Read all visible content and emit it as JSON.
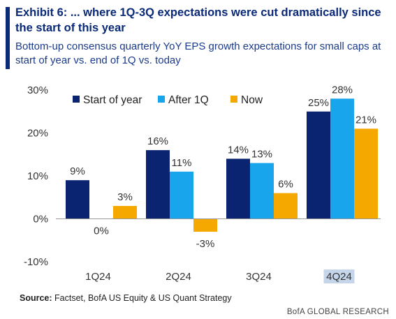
{
  "header": {
    "title": "Exhibit 6: ... where 1Q-3Q expectations were cut dramatically since the start of this year",
    "subtitle": "Bottom-up consensus quarterly YoY EPS growth expectations for small caps at start of year vs. end of 1Q vs. today"
  },
  "chart_data": {
    "type": "bar",
    "categories": [
      "1Q24",
      "2Q24",
      "3Q24",
      "4Q24"
    ],
    "series": [
      {
        "name": "Start of year",
        "values": [
          9,
          16,
          14,
          25
        ],
        "labels": [
          "9%",
          "16%",
          "14%",
          "25%"
        ],
        "color": "#0a2472"
      },
      {
        "name": "After 1Q",
        "values": [
          0,
          11,
          13,
          28
        ],
        "labels": [
          "0%",
          "11%",
          "13%",
          "28%"
        ],
        "color": "#19a5eb"
      },
      {
        "name": "Now",
        "values": [
          3,
          -3,
          6,
          21
        ],
        "labels": [
          "3%",
          "-3%",
          "6%",
          "21%"
        ],
        "color": "#f5a800"
      }
    ],
    "ylim": [
      -10,
      30
    ],
    "yticks": [
      -10,
      0,
      10,
      20,
      30
    ],
    "ytick_labels": [
      "-10%",
      "0%",
      "10%",
      "20%",
      "30%"
    ],
    "highlighted_category": "4Q24",
    "highlight_color": "#c5d6ea",
    "legend_position": "top-left",
    "grid": false
  },
  "footer": {
    "source_label": "Source:",
    "source_text": "Factset, BofA US Equity & US Quant Strategy",
    "brand": "BofA GLOBAL RESEARCH"
  }
}
